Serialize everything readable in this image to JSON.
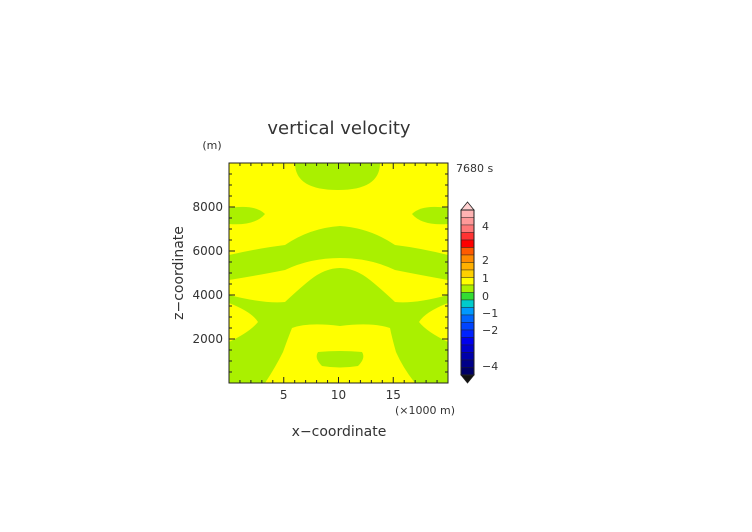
{
  "chart_data": {
    "type": "heatmap",
    "title": "vertical velocity",
    "xlabel": "x−coordinate",
    "ylabel": "z−coordinate",
    "y_unit": "(m)",
    "x_unit": "(×1000 m)",
    "time_label": "7680 s",
    "xlim": [
      0,
      20
    ],
    "ylim": [
      0,
      10000
    ],
    "x_ticks": [
      5,
      10,
      15
    ],
    "x_tick_labels": [
      "5",
      "10",
      "15"
    ],
    "y_ticks": [
      2000,
      4000,
      6000,
      8000
    ],
    "y_tick_labels": [
      "2000",
      "4000",
      "6000",
      "8000"
    ],
    "colorbar": {
      "labels": [
        {
          "value": 4,
          "text": "4"
        },
        {
          "value": 2,
          "text": "2"
        },
        {
          "value": 1,
          "text": "1"
        },
        {
          "value": 0,
          "text": "0"
        },
        {
          "value": -1,
          "text": "−1"
        },
        {
          "value": -2,
          "text": "−2"
        },
        {
          "value": -4,
          "text": "−4"
        }
      ],
      "extend": "both",
      "colors_top_to_bottom": [
        "#ffb3b3",
        "#ff9999",
        "#ff7777",
        "#ff3333",
        "#ff0000",
        "#ff5a00",
        "#ff8a00",
        "#ffb000",
        "#ffd000",
        "#ffff00",
        "#aaf000",
        "#33dd33",
        "#00cccc",
        "#0099ff",
        "#0066ff",
        "#0044ff",
        "#0022ff",
        "#0000ee",
        "#0000cc",
        "#0000aa",
        "#000088",
        "#000066"
      ],
      "top_arrow_color": "#ffd0d0",
      "bottom_arrow_color": "#111111"
    },
    "field": {
      "background_color": "#ffff00",
      "region_color": "#aaf000",
      "background_range": "0 to 0.5",
      "region_range": "-0.5 to 0"
    }
  }
}
